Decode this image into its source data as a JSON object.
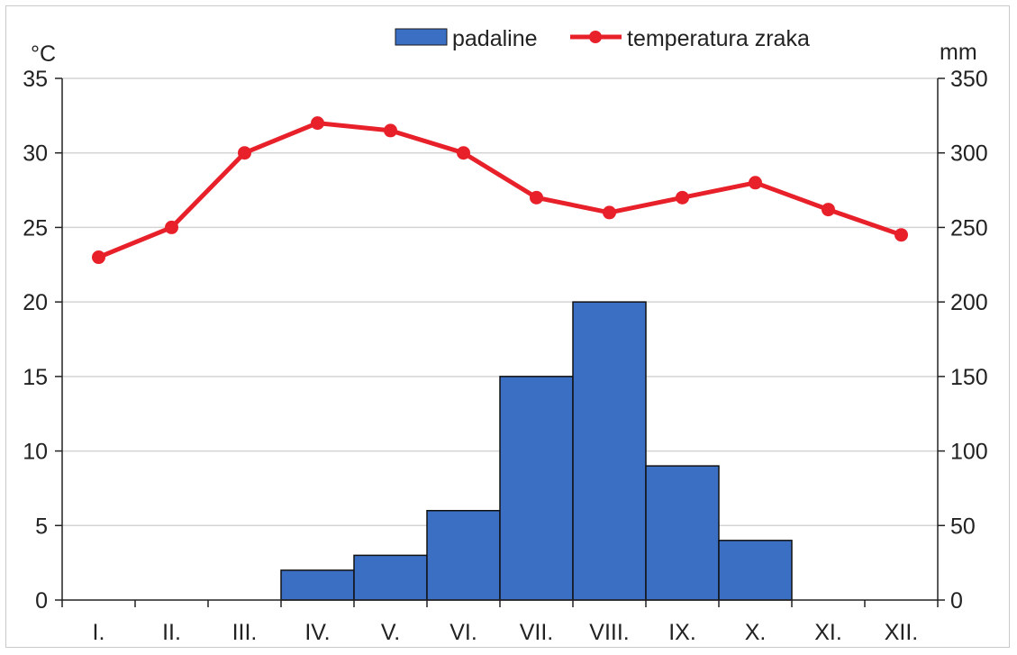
{
  "chart_data": {
    "type": "bar+line",
    "categories": [
      "I.",
      "II.",
      "III.",
      "IV.",
      "V.",
      "VI.",
      "VII.",
      "VIII.",
      "IX.",
      "X.",
      "XI.",
      "XII."
    ],
    "series": [
      {
        "name": "padaline",
        "type": "bar",
        "axis": "right",
        "values": [
          0,
          0,
          0,
          20,
          30,
          60,
          150,
          200,
          90,
          40,
          0,
          0
        ],
        "color": "#3a6fc4"
      },
      {
        "name": "temperatura zraka",
        "type": "line",
        "axis": "left",
        "values": [
          23,
          25,
          30,
          32,
          31.5,
          30,
          27,
          26,
          27,
          28,
          26.2,
          24.5
        ],
        "color": "#e8202a"
      }
    ],
    "y_left": {
      "unit": "°C",
      "lim": [
        0,
        35
      ],
      "ticks": [
        "0",
        "5",
        "10",
        "15",
        "20",
        "25",
        "30",
        "35"
      ]
    },
    "y_right": {
      "unit": "mm",
      "lim": [
        0,
        350
      ],
      "ticks": [
        "0",
        "50",
        "100",
        "150",
        "200",
        "250",
        "300",
        "350"
      ]
    },
    "grid": true,
    "legend": "top-center"
  }
}
